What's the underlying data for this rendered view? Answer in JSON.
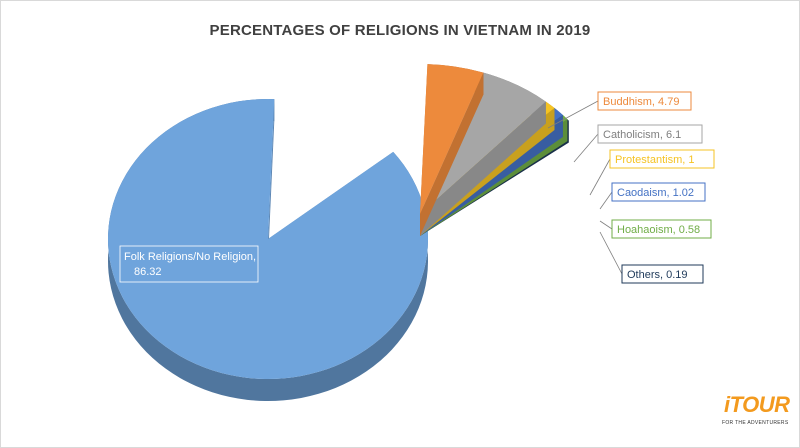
{
  "title": "PERCENTAGES OF RELIGIONS IN VIETNAM IN 2019",
  "chart_data": {
    "type": "pie",
    "title": "PERCENTAGES OF RELIGIONS IN VIETNAM IN 2019",
    "categories": [
      "Folk Religions/No Religion",
      "Buddhism",
      "Catholicism",
      "Protestantism",
      "Caodaism",
      "Hoahaoism",
      "Others"
    ],
    "values": [
      86.32,
      4.79,
      6.1,
      1,
      1.02,
      0.58,
      0.19
    ],
    "labels": [
      "Folk Religions/No Religion,",
      "Buddhism, 4.79",
      "Catholicism, 6.1",
      "Protestantism, 1",
      "Caodaism, 1.02",
      "Hoahaoism, 0.58",
      "Others, 0.19"
    ],
    "main_label_value": "86.32",
    "colors": [
      "#6fa4dc",
      "#ed8a3c",
      "#a6a6a6",
      "#f5c324",
      "#4472c4",
      "#70ad47",
      "#1f3a5a"
    ],
    "exploded": true,
    "three_d": true
  },
  "logo": {
    "text": "iTOUR",
    "tagline": "FOR THE ADVENTURERS"
  }
}
